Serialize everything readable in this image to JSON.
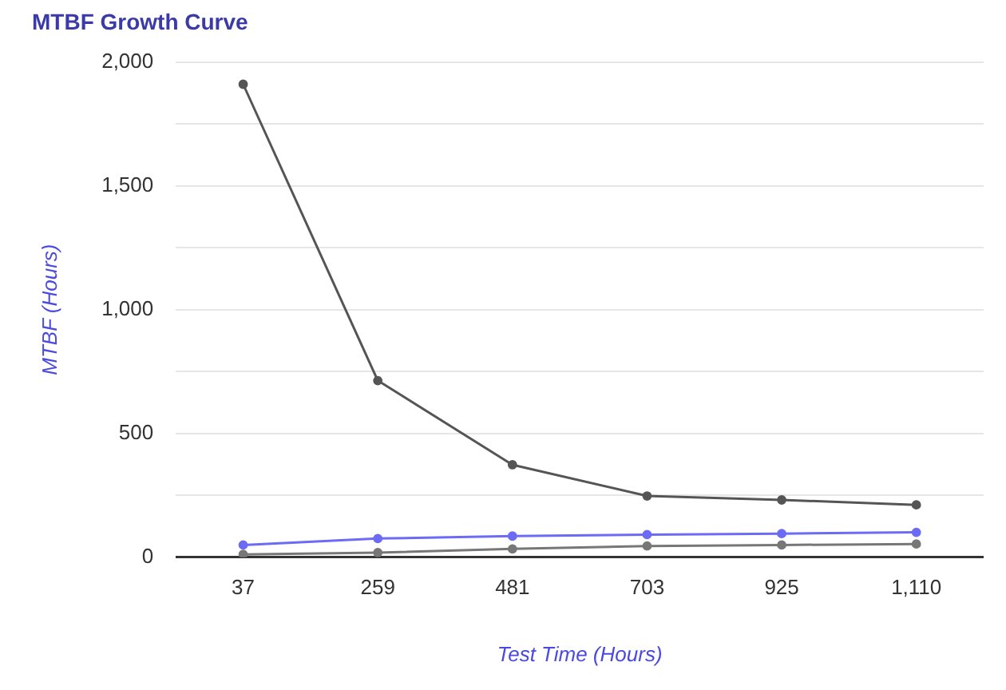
{
  "chart_data": {
    "type": "line",
    "title": "MTBF Growth Curve",
    "xlabel": "Test Time (Hours)",
    "ylabel": "MTBF (Hours)",
    "categories": [
      "37",
      "259",
      "481",
      "703",
      "925",
      "1,110"
    ],
    "series": [
      {
        "color": "#555555",
        "values": [
          1910,
          713,
          373,
          247,
          231,
          211
        ]
      },
      {
        "color": "#6b6bf5",
        "values": [
          49,
          75,
          85,
          91,
          95,
          100
        ]
      },
      {
        "color": "#777777",
        "values": [
          11,
          18,
          33,
          45,
          49,
          53
        ]
      }
    ],
    "ylim": [
      0,
      2000
    ],
    "yticks": [
      0,
      {
        "value": 250,
        "label": null
      },
      500,
      {
        "value": 750,
        "label": null
      },
      {
        "value": 1000,
        "label": "1,000"
      },
      {
        "value": 1250,
        "label": null
      },
      {
        "value": 1500,
        "label": "1,500"
      },
      {
        "value": 1750,
        "label": null
      },
      {
        "value": 2000,
        "label": "2,000"
      }
    ],
    "grid": "y",
    "legend": false,
    "marker": "circle",
    "line_style": "solid"
  }
}
